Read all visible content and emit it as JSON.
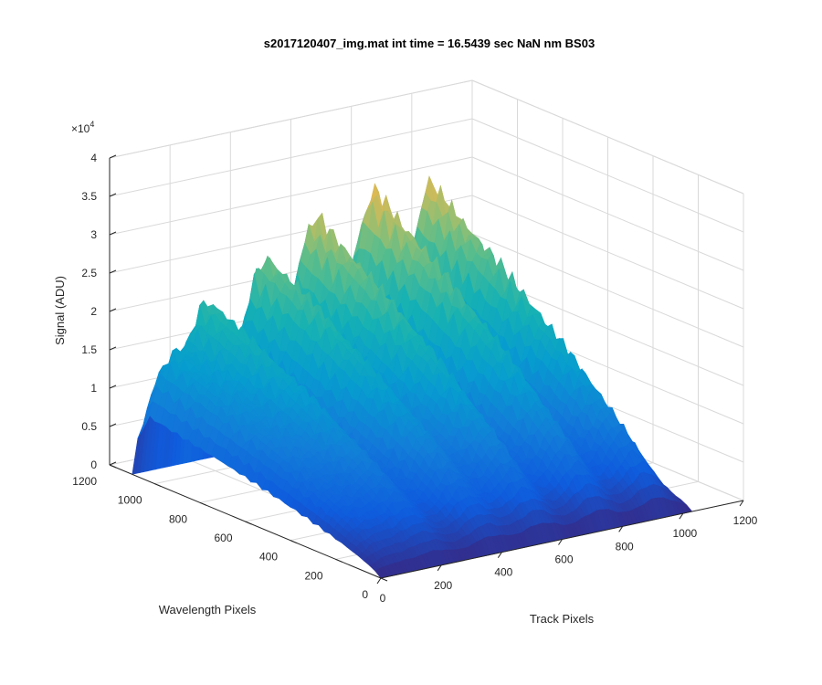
{
  "chart_data": {
    "type": "surface",
    "title": "s2017120407_img.mat int time = 16.5439 sec  NaN nm BS03",
    "xlabel": "Track Pixels",
    "ylabel": "Wavelength Pixels",
    "zlabel": "Signal (ADU)",
    "z_multiplier_label": "×10",
    "z_multiplier_exp": "4",
    "xlim": [
      0,
      1200
    ],
    "ylim": [
      0,
      1200
    ],
    "zlim": [
      0,
      40000
    ],
    "x_ticks": [
      "0",
      "200",
      "400",
      "600",
      "800",
      "1000",
      "1200"
    ],
    "y_ticks": [
      "0",
      "200",
      "400",
      "600",
      "800",
      "1000",
      "1200"
    ],
    "z_ticks": [
      "0",
      "0.5",
      "1",
      "1.5",
      "2",
      "2.5",
      "3",
      "3.5",
      "4"
    ],
    "grid": true,
    "colormap": "parula",
    "track_ridges": [
      {
        "center": 60,
        "peak": 14500
      },
      {
        "center": 200,
        "peak": 21500
      },
      {
        "center": 380,
        "peak": 26500
      },
      {
        "center": 550,
        "peak": 30500
      },
      {
        "center": 740,
        "peak": 32500
      },
      {
        "center": 930,
        "peak": 32000
      }
    ],
    "signal_wavelength_range": [
      0,
      1100
    ],
    "signal_track_range": [
      0,
      1030
    ]
  }
}
